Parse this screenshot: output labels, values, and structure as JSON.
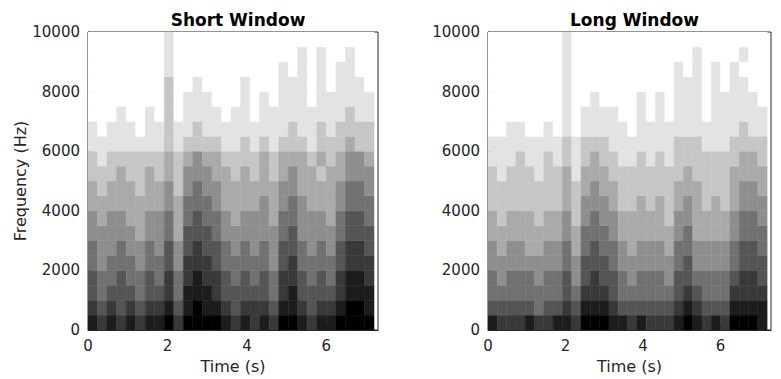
{
  "chart_data": [
    {
      "type": "heatmap",
      "title": "Short Window",
      "x_label": "Time (s)",
      "y_label": "Frequency (Hz)",
      "xlim": [
        0,
        7.3
      ],
      "ylim": [
        0,
        10000
      ],
      "xticks": [
        0,
        2,
        4,
        6
      ],
      "yticks": [
        0,
        2000,
        4000,
        6000,
        8000,
        10000
      ],
      "x_bins": [
        0,
        0.24,
        0.48,
        0.72,
        0.96,
        1.2,
        1.44,
        1.68,
        1.92,
        2.16,
        2.4,
        2.64,
        2.88,
        3.12,
        3.36,
        3.6,
        3.84,
        4.08,
        4.32,
        4.56,
        4.8,
        5.04,
        5.28,
        5.52,
        5.76,
        6,
        6.24,
        6.48,
        6.72,
        6.96,
        7.2
      ],
      "y_bins": [
        0,
        500,
        1000,
        1500,
        2000,
        2500,
        3000,
        3500,
        4000,
        4500,
        5000,
        5500,
        6000,
        6500,
        7000,
        7500,
        8000,
        8500,
        9000,
        9500,
        10000
      ],
      "cells": [
        [
          8,
          7,
          8,
          7,
          8,
          7,
          8,
          8,
          9,
          7,
          9,
          9,
          9,
          9,
          8,
          7,
          8,
          7,
          8,
          7,
          9,
          9,
          8,
          7,
          8,
          8,
          9,
          9,
          9,
          9
        ],
        [
          7,
          6,
          7,
          6,
          7,
          6,
          7,
          7,
          8,
          6,
          8,
          9,
          8,
          8,
          7,
          6,
          7,
          7,
          7,
          6,
          8,
          8,
          7,
          6,
          7,
          7,
          8,
          9,
          9,
          8
        ],
        [
          6,
          5,
          6,
          6,
          6,
          5,
          6,
          6,
          7,
          5,
          8,
          8,
          8,
          7,
          6,
          6,
          6,
          6,
          6,
          5,
          7,
          8,
          6,
          6,
          6,
          6,
          7,
          8,
          8,
          8
        ],
        [
          6,
          5,
          5,
          6,
          5,
          5,
          6,
          5,
          7,
          5,
          7,
          8,
          7,
          7,
          6,
          5,
          6,
          5,
          6,
          5,
          7,
          7,
          6,
          5,
          6,
          5,
          7,
          8,
          8,
          7
        ],
        [
          5,
          4,
          5,
          5,
          5,
          4,
          5,
          5,
          6,
          4,
          7,
          7,
          7,
          6,
          5,
          5,
          5,
          5,
          5,
          4,
          6,
          7,
          5,
          5,
          5,
          5,
          6,
          7,
          7,
          7
        ],
        [
          5,
          4,
          4,
          5,
          4,
          4,
          5,
          4,
          6,
          4,
          6,
          7,
          6,
          6,
          5,
          4,
          5,
          4,
          5,
          4,
          6,
          6,
          5,
          4,
          5,
          4,
          6,
          7,
          7,
          6
        ],
        [
          4,
          4,
          4,
          4,
          4,
          3,
          4,
          4,
          5,
          3,
          6,
          6,
          6,
          5,
          4,
          4,
          4,
          4,
          4,
          4,
          5,
          6,
          4,
          4,
          4,
          4,
          5,
          6,
          6,
          6
        ],
        [
          4,
          3,
          4,
          4,
          3,
          3,
          4,
          4,
          5,
          3,
          5,
          6,
          5,
          5,
          4,
          3,
          4,
          4,
          4,
          3,
          5,
          5,
          4,
          4,
          4,
          3,
          5,
          6,
          6,
          5
        ],
        [
          3,
          3,
          3,
          3,
          3,
          3,
          3,
          3,
          4,
          3,
          5,
          5,
          5,
          4,
          3,
          3,
          3,
          3,
          4,
          3,
          4,
          5,
          4,
          3,
          3,
          3,
          4,
          5,
          5,
          5
        ],
        [
          3,
          2,
          3,
          3,
          3,
          2,
          3,
          3,
          4,
          2,
          4,
          5,
          4,
          4,
          3,
          3,
          3,
          3,
          3,
          3,
          4,
          4,
          3,
          3,
          3,
          3,
          4,
          5,
          5,
          4
        ],
        [
          2,
          2,
          2,
          3,
          2,
          2,
          3,
          2,
          3,
          2,
          4,
          4,
          4,
          3,
          3,
          2,
          3,
          2,
          3,
          2,
          3,
          4,
          3,
          3,
          2,
          3,
          3,
          4,
          4,
          4
        ],
        [
          2,
          1,
          2,
          2,
          2,
          2,
          2,
          2,
          3,
          2,
          3,
          4,
          3,
          3,
          2,
          2,
          2,
          2,
          3,
          2,
          3,
          3,
          3,
          2,
          3,
          2,
          3,
          4,
          4,
          3
        ],
        [
          1,
          1,
          1,
          1,
          1,
          1,
          1,
          1,
          2,
          1,
          2,
          2,
          2,
          2,
          1,
          1,
          2,
          1,
          2,
          1,
          2,
          2,
          2,
          1,
          2,
          2,
          2,
          3,
          2,
          2
        ],
        [
          1,
          0,
          1,
          1,
          1,
          0,
          1,
          1,
          2,
          1,
          1,
          2,
          1,
          1,
          1,
          1,
          1,
          1,
          1,
          1,
          1,
          2,
          1,
          1,
          2,
          1,
          2,
          2,
          2,
          2
        ],
        [
          0,
          0,
          0,
          1,
          0,
          0,
          1,
          0,
          2,
          0,
          1,
          1,
          1,
          1,
          0,
          1,
          1,
          0,
          1,
          1,
          1,
          1,
          1,
          1,
          1,
          1,
          1,
          2,
          1,
          1
        ],
        [
          0,
          0,
          0,
          0,
          0,
          0,
          0,
          0,
          2,
          0,
          1,
          1,
          1,
          0,
          0,
          0,
          1,
          0,
          1,
          0,
          1,
          1,
          1,
          0,
          1,
          1,
          1,
          1,
          1,
          1
        ],
        [
          0,
          0,
          0,
          0,
          0,
          0,
          0,
          0,
          2,
          0,
          0,
          1,
          0,
          0,
          0,
          0,
          1,
          0,
          0,
          0,
          1,
          1,
          1,
          0,
          1,
          0,
          1,
          1,
          1,
          0
        ],
        [
          0,
          0,
          0,
          0,
          0,
          0,
          0,
          0,
          1,
          0,
          0,
          0,
          0,
          0,
          0,
          0,
          0,
          0,
          0,
          0,
          1,
          0,
          1,
          0,
          1,
          0,
          1,
          1,
          0,
          0
        ],
        [
          0,
          0,
          0,
          0,
          0,
          0,
          0,
          0,
          1,
          0,
          0,
          0,
          0,
          0,
          0,
          0,
          0,
          0,
          0,
          0,
          0,
          0,
          1,
          0,
          1,
          0,
          0,
          1,
          0,
          0
        ],
        [
          0,
          0,
          0,
          0,
          0,
          0,
          0,
          0,
          1,
          0,
          0,
          0,
          0,
          0,
          0,
          0,
          0,
          0,
          0,
          0,
          0,
          0,
          0,
          0,
          0,
          0,
          0,
          0,
          0,
          0
        ]
      ]
    },
    {
      "type": "heatmap",
      "title": "Long Window",
      "x_label": "Time (s)",
      "xlim": [
        0,
        7.3
      ],
      "ylim": [
        0,
        10000
      ],
      "xticks": [
        0,
        2,
        4,
        6
      ],
      "yticks": [
        0,
        2000,
        4000,
        6000,
        8000,
        10000
      ],
      "x_bins": [
        0,
        0.24,
        0.48,
        0.72,
        0.96,
        1.2,
        1.44,
        1.68,
        1.92,
        2.16,
        2.4,
        2.64,
        2.88,
        3.12,
        3.36,
        3.6,
        3.84,
        4.08,
        4.32,
        4.56,
        4.8,
        5.04,
        5.28,
        5.52,
        5.76,
        6,
        6.24,
        6.48,
        6.72,
        6.96,
        7.2
      ],
      "y_bins": [
        0,
        500,
        1000,
        1500,
        2000,
        2500,
        3000,
        3500,
        4000,
        4500,
        5000,
        5500,
        6000,
        6500,
        7000,
        7500,
        8000,
        8500,
        9000,
        9500,
        10000
      ],
      "cells": [
        [
          8,
          7,
          7,
          7,
          8,
          7,
          7,
          8,
          8,
          7,
          9,
          9,
          9,
          8,
          8,
          7,
          8,
          7,
          7,
          7,
          8,
          9,
          8,
          7,
          8,
          7,
          9,
          9,
          9,
          8
        ],
        [
          6,
          6,
          6,
          6,
          6,
          5,
          6,
          6,
          7,
          6,
          8,
          8,
          8,
          7,
          6,
          6,
          6,
          6,
          6,
          6,
          7,
          8,
          7,
          6,
          6,
          6,
          8,
          8,
          8,
          8
        ],
        [
          5,
          5,
          5,
          5,
          5,
          5,
          5,
          5,
          6,
          5,
          7,
          7,
          7,
          6,
          5,
          5,
          5,
          5,
          5,
          5,
          6,
          7,
          6,
          5,
          5,
          5,
          7,
          7,
          7,
          7
        ],
        [
          5,
          4,
          5,
          5,
          5,
          4,
          5,
          5,
          6,
          4,
          6,
          7,
          6,
          6,
          5,
          4,
          5,
          5,
          5,
          4,
          6,
          6,
          5,
          5,
          5,
          5,
          6,
          7,
          7,
          6
        ],
        [
          4,
          4,
          4,
          4,
          4,
          4,
          4,
          4,
          5,
          4,
          6,
          6,
          6,
          5,
          4,
          4,
          4,
          4,
          4,
          4,
          5,
          6,
          4,
          4,
          4,
          4,
          5,
          6,
          6,
          6
        ],
        [
          4,
          3,
          4,
          4,
          3,
          3,
          4,
          4,
          5,
          3,
          5,
          6,
          5,
          5,
          4,
          3,
          4,
          4,
          4,
          3,
          5,
          5,
          4,
          4,
          4,
          4,
          5,
          6,
          6,
          5
        ],
        [
          3,
          3,
          3,
          3,
          3,
          3,
          3,
          3,
          4,
          3,
          5,
          5,
          5,
          4,
          3,
          3,
          3,
          3,
          3,
          3,
          4,
          5,
          3,
          3,
          3,
          3,
          4,
          5,
          5,
          5
        ],
        [
          3,
          2,
          3,
          3,
          3,
          2,
          3,
          3,
          4,
          2,
          4,
          5,
          4,
          4,
          3,
          3,
          3,
          3,
          3,
          2,
          4,
          4,
          3,
          3,
          3,
          3,
          4,
          5,
          5,
          4
        ],
        [
          2,
          2,
          2,
          2,
          2,
          2,
          2,
          2,
          3,
          2,
          4,
          4,
          4,
          3,
          2,
          2,
          3,
          2,
          3,
          2,
          3,
          4,
          3,
          2,
          3,
          2,
          3,
          4,
          4,
          4
        ],
        [
          2,
          2,
          2,
          2,
          2,
          2,
          2,
          2,
          3,
          2,
          3,
          4,
          3,
          3,
          2,
          2,
          2,
          2,
          2,
          2,
          3,
          3,
          3,
          2,
          2,
          2,
          3,
          4,
          4,
          3
        ],
        [
          2,
          1,
          2,
          2,
          2,
          1,
          2,
          2,
          3,
          1,
          3,
          3,
          3,
          2,
          2,
          2,
          2,
          2,
          2,
          2,
          2,
          3,
          2,
          2,
          2,
          2,
          3,
          3,
          3,
          3
        ],
        [
          1,
          1,
          1,
          2,
          1,
          1,
          2,
          1,
          2,
          1,
          2,
          3,
          2,
          2,
          1,
          1,
          2,
          1,
          2,
          1,
          2,
          2,
          2,
          2,
          2,
          2,
          2,
          3,
          3,
          2
        ],
        [
          1,
          1,
          1,
          1,
          1,
          1,
          1,
          1,
          2,
          1,
          2,
          2,
          2,
          1,
          1,
          1,
          1,
          1,
          1,
          1,
          2,
          2,
          2,
          1,
          1,
          1,
          2,
          2,
          2,
          2
        ],
        [
          0,
          0,
          1,
          1,
          0,
          0,
          1,
          0,
          1,
          0,
          1,
          1,
          1,
          1,
          1,
          0,
          1,
          1,
          1,
          1,
          1,
          1,
          1,
          1,
          1,
          1,
          1,
          2,
          1,
          1
        ],
        [
          0,
          0,
          0,
          0,
          0,
          0,
          0,
          0,
          1,
          0,
          1,
          1,
          1,
          1,
          0,
          0,
          1,
          0,
          1,
          0,
          1,
          1,
          1,
          0,
          1,
          1,
          1,
          1,
          1,
          1
        ],
        [
          0,
          0,
          0,
          0,
          0,
          0,
          0,
          0,
          1,
          0,
          0,
          1,
          0,
          0,
          0,
          0,
          1,
          0,
          1,
          0,
          1,
          1,
          1,
          0,
          1,
          1,
          1,
          1,
          1,
          0
        ],
        [
          0,
          0,
          0,
          0,
          0,
          0,
          0,
          0,
          1,
          0,
          0,
          0,
          0,
          0,
          0,
          0,
          0,
          0,
          0,
          0,
          1,
          1,
          1,
          0,
          1,
          0,
          1,
          1,
          0,
          0
        ],
        [
          0,
          0,
          0,
          0,
          0,
          0,
          0,
          0,
          1,
          0,
          0,
          0,
          0,
          0,
          0,
          0,
          0,
          0,
          0,
          0,
          1,
          0,
          1,
          0,
          1,
          0,
          1,
          0,
          0,
          0
        ],
        [
          0,
          0,
          0,
          0,
          0,
          0,
          0,
          0,
          1,
          0,
          0,
          0,
          0,
          0,
          0,
          0,
          0,
          0,
          0,
          0,
          0,
          0,
          1,
          0,
          0,
          0,
          0,
          1,
          0,
          0
        ],
        [
          0,
          0,
          0,
          0,
          0,
          0,
          0,
          0,
          1,
          0,
          0,
          0,
          0,
          0,
          0,
          0,
          0,
          0,
          0,
          0,
          0,
          0,
          0,
          0,
          0,
          0,
          0,
          0,
          0,
          0
        ]
      ]
    }
  ]
}
